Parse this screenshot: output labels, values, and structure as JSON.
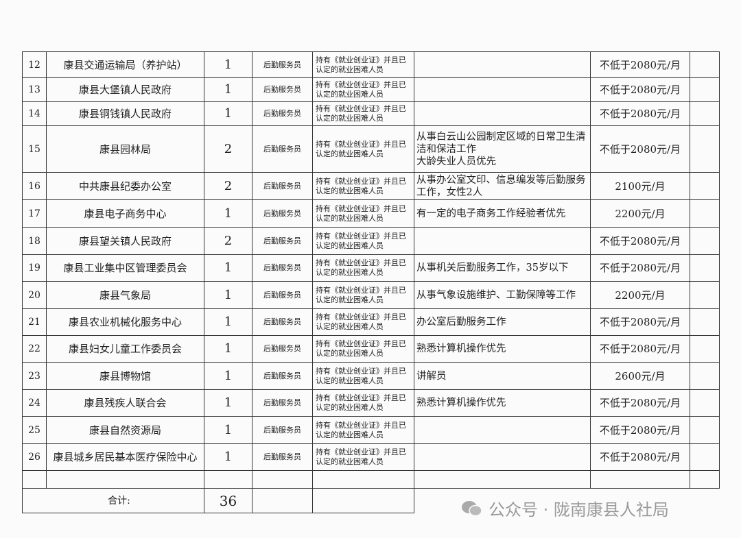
{
  "table": {
    "rows": [
      {
        "no": "12",
        "unit": "康县交通运输局（养护站）",
        "count": "1",
        "position": "后勤服务员",
        "requirement": "持有《就业创业证》并且已认定的就业困难人员",
        "salary": "不低于2080元/月"
      },
      {
        "no": "13",
        "unit": "康县大堡镇人民政府",
        "count": "1",
        "position": "后勤服务员",
        "requirement": "持有《就业创业证》并且已认定的就业困难人员",
        "salary": "不低于2080元/月"
      },
      {
        "no": "14",
        "unit": "康县铜钱镇人民政府",
        "count": "1",
        "position": "后勤服务员",
        "requirement": "持有《就业创业证》并且已认定的就业困难人员",
        "salary": "不低于2080元/月"
      },
      {
        "no": "15",
        "unit": "康县园林局",
        "count": "2",
        "position": "后勤服务员",
        "requirement": "持有《就业创业证》并且已认定的就业困难人员",
        "description": "从事白云山公园制定区域的日常卫生清洁和保洁工作\n大龄失业人员优先",
        "salary": "不低于2080元/月"
      },
      {
        "no": "16",
        "unit": "中共康县纪委办公室",
        "count": "2",
        "position": "后勤服务员",
        "requirement": "持有《就业创业证》并且已认定的就业困难人员",
        "description": "从事办公室文印、信息编发等后勤服务工作，女性2人",
        "salary": "2100元/月"
      },
      {
        "no": "17",
        "unit": "康县电子商务中心",
        "count": "1",
        "position": "后勤服务员",
        "requirement": "持有《就业创业证》并且已认定的就业困难人员",
        "description": "有一定的电子商务工作经验者优先",
        "salary": "2200元/月"
      },
      {
        "no": "18",
        "unit": "康县望关镇人民政府",
        "count": "2",
        "position": "后勤服务员",
        "requirement": "持有《就业创业证》并且已认定的就业困难人员",
        "salary": "不低于2080元/月"
      },
      {
        "no": "19",
        "unit": "康县工业集中区管理委员会",
        "count": "1",
        "position": "后勤服务员",
        "requirement": "持有《就业创业证》并且已认定的就业困难人员",
        "description": "从事机关后勤服务工作，35岁以下",
        "salary": "不低于2080元/月"
      },
      {
        "no": "20",
        "unit": "康县气象局",
        "count": "1",
        "position": "后勤服务员",
        "requirement": "持有《就业创业证》并且已认定的就业困难人员",
        "description": "从事气象设施维护、工勤保障等工作",
        "salary": "2200元/月"
      },
      {
        "no": "21",
        "unit": "康县农业机械化服务中心",
        "count": "1",
        "position": "后勤服务员",
        "requirement": "持有《就业创业证》并且已认定的就业困难人员",
        "description": "办公室后勤服务工作",
        "salary": "不低于2080元/月"
      },
      {
        "no": "22",
        "unit": "康县妇女儿童工作委员会",
        "count": "1",
        "position": "后勤服务员",
        "requirement": "持有《就业创业证》并且已认定的就业困难人员",
        "description": "熟悉计算机操作优先",
        "salary": "不低于2080元/月"
      },
      {
        "no": "23",
        "unit": "康县博物馆",
        "count": "1",
        "position": "后勤服务员",
        "requirement": "持有《就业创业证》并且已认定的就业困难人员",
        "description": "讲解员",
        "salary": "2600元/月"
      },
      {
        "no": "24",
        "unit": "康县残疾人联合会",
        "count": "1",
        "position": "后勤服务员",
        "requirement": "持有《就业创业证》并且已认定的就业困难人员",
        "description": "熟悉计算机操作优先",
        "salary": "不低于2080元/月"
      },
      {
        "no": "25",
        "unit": "康县自然资源局",
        "count": "1",
        "position": "后勤服务员",
        "requirement": "持有《就业创业证》并且已认定的就业困难人员",
        "salary": "不低于2080元/月"
      },
      {
        "no": "26",
        "unit": "康县城乡居民基本医疗保险中心",
        "count": "1",
        "position": "后勤服务员",
        "requirement": "持有《就业创业证》并且已认定的就业困难人员",
        "salary": "不低于2080元/月"
      }
    ],
    "total": {
      "label": "合计:",
      "count": "36"
    }
  },
  "watermark": "公众号 · 陇南康县人社局"
}
